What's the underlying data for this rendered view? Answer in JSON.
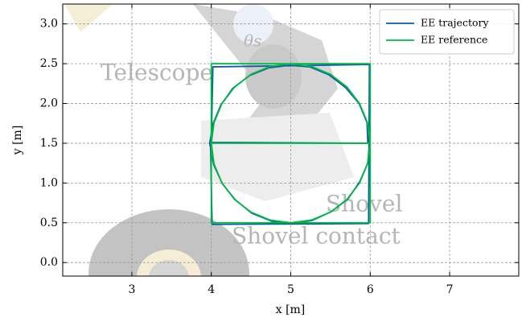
{
  "chart_data": {
    "type": "line",
    "xlabel": "x [m]",
    "ylabel": "y [m]",
    "xlim": [
      2.13,
      7.87
    ],
    "ylim": [
      -0.17,
      3.25
    ],
    "xticks": [
      3,
      4,
      5,
      6,
      7
    ],
    "yticks": [
      {
        "value": 0,
        "label": "0.0"
      },
      {
        "value": 0.5,
        "label": "0.5"
      },
      {
        "value": 1,
        "label": "1.0"
      },
      {
        "value": 1.5,
        "label": "1.5"
      },
      {
        "value": 2,
        "label": "2.0"
      },
      {
        "value": 2.5,
        "label": "2.5"
      },
      {
        "value": 3,
        "label": "3.0"
      }
    ],
    "grid": true,
    "legend": "upper right",
    "annotations": [
      "Telescope",
      "Shovel",
      "Shovel contact",
      "θs"
    ],
    "series": [
      {
        "name": "EE trajectory",
        "color": "#0C5DA5",
        "x": [
          3.99,
          4.01,
          5.98,
          5.99,
          4.02,
          4.0,
          5.97,
          5.96,
          5.86,
          5.69,
          5.48,
          5.24,
          4.99,
          4.73,
          4.48,
          4.27,
          4.12,
          4.02,
          3.98,
          4.03,
          4.14,
          4.3,
          4.51,
          4.76,
          5.02,
          5.27,
          5.51,
          5.72,
          5.87,
          5.97,
          5.99
        ],
        "values": [
          1.49,
          0.48,
          0.49,
          2.49,
          2.46,
          1.51,
          1.5,
          1.76,
          2.0,
          2.2,
          2.36,
          2.46,
          2.48,
          2.45,
          2.35,
          2.19,
          1.98,
          1.74,
          1.5,
          1.23,
          0.99,
          0.79,
          0.62,
          0.52,
          0.49,
          0.53,
          0.64,
          0.8,
          1.02,
          1.25,
          1.5
        ]
      },
      {
        "name": "EE reference",
        "color": "#00B945",
        "x": [
          4,
          4,
          6,
          6,
          4,
          4,
          6,
          5.966,
          5.866,
          5.707,
          5.5,
          5.259,
          5,
          4.741,
          4.5,
          4.293,
          4.134,
          4.034,
          4,
          4.034,
          4.134,
          4.293,
          4.5,
          4.741,
          5,
          5.259,
          5.5,
          5.707,
          5.866,
          5.966,
          6
        ],
        "values": [
          1.5,
          0.5,
          0.5,
          2.5,
          2.5,
          1.5,
          1.5,
          1.759,
          2,
          2.207,
          2.366,
          2.466,
          2.5,
          2.466,
          2.366,
          2.207,
          2,
          1.759,
          1.5,
          1.241,
          1,
          0.793,
          0.634,
          0.534,
          0.5,
          0.534,
          0.634,
          0.793,
          1,
          1.241,
          1.5
        ]
      }
    ]
  }
}
